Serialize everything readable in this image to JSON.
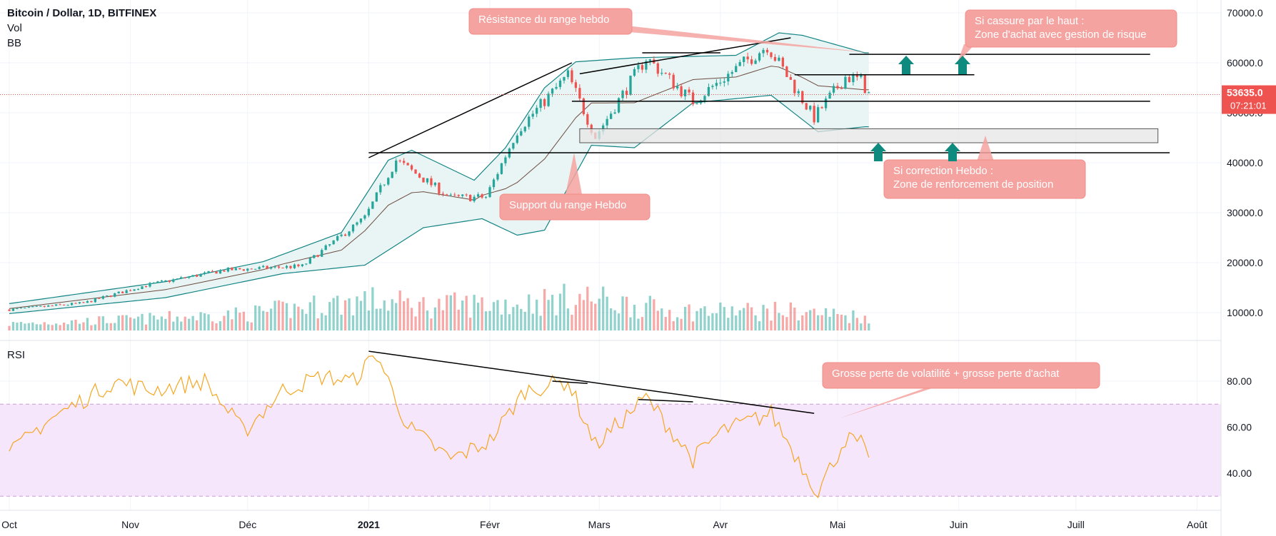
{
  "header": {
    "symbol": "Bitcoin / Dollar, 1D, BITFINEX",
    "indicators": [
      "Vol",
      "BB"
    ],
    "rsi_label": "RSI"
  },
  "colors": {
    "up": "#26a69a",
    "down": "#ef5350",
    "bb_band": "#138484",
    "bb_basis": "#6d4c41",
    "bb_fill": "#e9f5f4",
    "rsi_line": "#f5a623",
    "rsi_band_fill": "#f5e6fb",
    "rsi_band_line": "#c89bd6",
    "annotation_fill": "#f5a3a0",
    "annotation_text": "#ffffff",
    "arrow": "#0f8a7e",
    "price_tag": "#ef5350",
    "trendline": "#000000"
  },
  "price_tag": {
    "price": "53635.0",
    "countdown": "07:21:01",
    "value": 53635
  },
  "annotations": {
    "resistance": "Résistance du range hebdo",
    "breakout_line1": "Si cassure par le haut :",
    "breakout_line2": "Zone d'achat avec gestion de risque",
    "support": "Support du range Hebdo",
    "correction_line1": "Si correction Hebdo :",
    "correction_line2": "Zone de renforcement de position",
    "rsi_note": "Grosse perte de volatilité + grosse perte d'achat"
  },
  "chart_data": [
    {
      "type": "candlestick",
      "yaxis_ticks": [
        "70000.0",
        "60000.0",
        "50000.0",
        "40000.0",
        "30000.0",
        "20000.0",
        "10000.0"
      ],
      "ylim": [
        0,
        73500
      ],
      "x_ticks": [
        {
          "label": "Oct",
          "date": "2020-10-01"
        },
        {
          "label": "Nov",
          "date": "2020-11-01"
        },
        {
          "label": "Déc",
          "date": "2020-12-01"
        },
        {
          "label": "2021",
          "date": "2021-01-01",
          "bold": true
        },
        {
          "label": "Févr",
          "date": "2021-02-01"
        },
        {
          "label": "Mars",
          "date": "2021-03-01"
        },
        {
          "label": "Avr",
          "date": "2021-04-01"
        },
        {
          "label": "Mai",
          "date": "2021-05-01"
        },
        {
          "label": "Juin",
          "date": "2021-06-01"
        },
        {
          "label": "Juill",
          "date": "2021-07-01"
        },
        {
          "label": "Août",
          "date": "2021-08-01"
        }
      ],
      "close_anchors": [
        [
          "2020-10-01",
          10600
        ],
        [
          "2020-10-20",
          11900
        ],
        [
          "2020-11-05",
          15500
        ],
        [
          "2020-11-25",
          18500
        ],
        [
          "2020-12-15",
          19300
        ],
        [
          "2020-12-31",
          29000
        ],
        [
          "2021-01-08",
          40500
        ],
        [
          "2021-01-22",
          33000
        ],
        [
          "2021-01-31",
          33100
        ],
        [
          "2021-02-08",
          46400
        ],
        [
          "2021-02-21",
          57500
        ],
        [
          "2021-02-28",
          45200
        ],
        [
          "2021-03-13",
          61000
        ],
        [
          "2021-03-25",
          52300
        ],
        [
          "2021-04-13",
          63500
        ],
        [
          "2021-04-25",
          49000
        ],
        [
          "2021-05-03",
          57200
        ],
        [
          "2021-05-07",
          56500
        ],
        [
          "2021-05-09",
          53635
        ]
      ],
      "bb_upper_anchors": [
        [
          "2020-10-01",
          11800
        ],
        [
          "2020-11-10",
          16200
        ],
        [
          "2020-12-05",
          20200
        ],
        [
          "2020-12-25",
          26000
        ],
        [
          "2021-01-06",
          40500
        ],
        [
          "2021-01-12",
          42500
        ],
        [
          "2021-01-28",
          36500
        ],
        [
          "2021-02-05",
          43000
        ],
        [
          "2021-02-15",
          55000
        ],
        [
          "2021-02-23",
          60200
        ],
        [
          "2021-03-10",
          61000
        ],
        [
          "2021-04-05",
          61500
        ],
        [
          "2021-04-16",
          66000
        ],
        [
          "2021-04-22",
          65500
        ],
        [
          "2021-05-08",
          62000
        ]
      ],
      "bb_lower_anchors": [
        [
          "2020-10-01",
          9800
        ],
        [
          "2020-11-10",
          13000
        ],
        [
          "2020-12-10",
          17800
        ],
        [
          "2020-12-31",
          19500
        ],
        [
          "2021-01-15",
          27000
        ],
        [
          "2021-01-30",
          28800
        ],
        [
          "2021-02-08",
          25500
        ],
        [
          "2021-02-15",
          26500
        ],
        [
          "2021-02-27",
          43500
        ],
        [
          "2021-03-10",
          43000
        ],
        [
          "2021-03-25",
          52000
        ],
        [
          "2021-04-14",
          53500
        ],
        [
          "2021-04-26",
          46200
        ],
        [
          "2021-05-08",
          47200
        ]
      ],
      "horizontal_levels": [
        {
          "price": 61700,
          "from": "2021-05-04",
          "to": "2021-07-20"
        },
        {
          "price": 57600,
          "from": "2021-04-20",
          "to": "2021-06-05"
        },
        {
          "price": 52300,
          "from": "2021-02-22",
          "to": "2021-07-20"
        },
        {
          "price": 42000,
          "from": "2021-01-01",
          "to": "2021-07-25"
        }
      ],
      "zones": [
        {
          "from_price": 44000,
          "to_price": 46800,
          "from": "2021-02-24",
          "to": "2021-07-22"
        }
      ],
      "trendlines": [
        {
          "from": [
            "2021-01-01",
            41000
          ],
          "to": [
            "2021-02-22",
            60000
          ]
        },
        {
          "from": [
            "2021-02-24",
            57800
          ],
          "to": [
            "2021-04-19",
            65000
          ]
        },
        {
          "from": [
            "2021-03-12",
            62000
          ],
          "to": [
            "2021-04-01",
            62000
          ]
        }
      ]
    },
    {
      "type": "bar",
      "name": "Vol",
      "profile_anchors": [
        [
          "2020-10-01",
          0.12
        ],
        [
          "2020-11-01",
          0.2
        ],
        [
          "2020-12-01",
          0.3
        ],
        [
          "2020-12-31",
          0.55
        ],
        [
          "2021-01-15",
          0.45
        ],
        [
          "2021-02-10",
          0.5
        ],
        [
          "2021-02-25",
          0.6
        ],
        [
          "2021-03-20",
          0.35
        ],
        [
          "2021-04-20",
          0.35
        ],
        [
          "2021-05-08",
          0.25
        ]
      ]
    },
    {
      "type": "line",
      "name": "RSI",
      "yaxis_ticks": [
        "80.00",
        "60.00",
        "40.00"
      ],
      "ylim": [
        27,
        97
      ],
      "band": [
        30,
        70
      ],
      "anchors": [
        [
          "2020-10-01",
          48
        ],
        [
          "2020-10-10",
          62
        ],
        [
          "2020-10-28",
          80
        ],
        [
          "2020-11-06",
          76
        ],
        [
          "2020-11-20",
          80
        ],
        [
          "2020-11-30",
          58
        ],
        [
          "2020-12-10",
          76
        ],
        [
          "2020-12-20",
          82
        ],
        [
          "2020-12-28",
          80
        ],
        [
          "2021-01-03",
          92
        ],
        [
          "2021-01-11",
          60
        ],
        [
          "2021-01-22",
          46
        ],
        [
          "2021-02-01",
          54
        ],
        [
          "2021-02-10",
          76
        ],
        [
          "2021-02-21",
          80
        ],
        [
          "2021-02-28",
          52
        ],
        [
          "2021-03-13",
          73
        ],
        [
          "2021-03-25",
          46
        ],
        [
          "2021-04-01",
          58
        ],
        [
          "2021-04-14",
          66
        ],
        [
          "2021-04-23",
          40
        ],
        [
          "2021-04-26",
          32
        ],
        [
          "2021-05-03",
          55
        ],
        [
          "2021-05-07",
          53
        ],
        [
          "2021-05-09",
          44
        ]
      ],
      "trendlines": [
        {
          "from": [
            "2021-01-01",
            93
          ],
          "to": [
            "2021-04-25",
            66
          ]
        },
        {
          "from": [
            "2021-02-17",
            80
          ],
          "to": [
            "2021-02-26",
            79
          ]
        },
        {
          "from": [
            "2021-03-11",
            72
          ],
          "to": [
            "2021-03-25",
            71
          ]
        }
      ]
    }
  ]
}
